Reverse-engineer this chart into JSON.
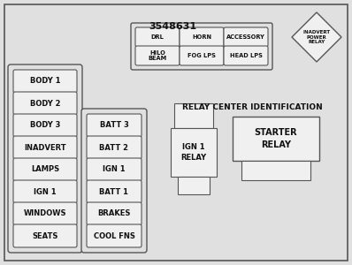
{
  "bg_color": "#e0e0e0",
  "border_color": "#555555",
  "box_color": "#f0f0f0",
  "text_color": "#111111",
  "title_number": "3548631",
  "left_column": [
    "BODY 1",
    "BODY 2",
    "BODY 3",
    "INADVERT",
    "LAMPS",
    "IGN 1",
    "WINDOWS",
    "SEATS"
  ],
  "mid_column": [
    "BATT 3",
    "BATT 2",
    "IGN 1",
    "BATT 1",
    "BRAKES",
    "COOL FNS"
  ],
  "top_fuses_row1": [
    "DRL",
    "HORN",
    "ACCESSORY"
  ],
  "top_fuses_row2": [
    "HILO\nBEAM",
    "FOG LPS",
    "HEAD LPS"
  ],
  "relay_label": "RELAY CENTER IDENTIFICATION",
  "fig_w": 3.98,
  "fig_h": 3.0
}
